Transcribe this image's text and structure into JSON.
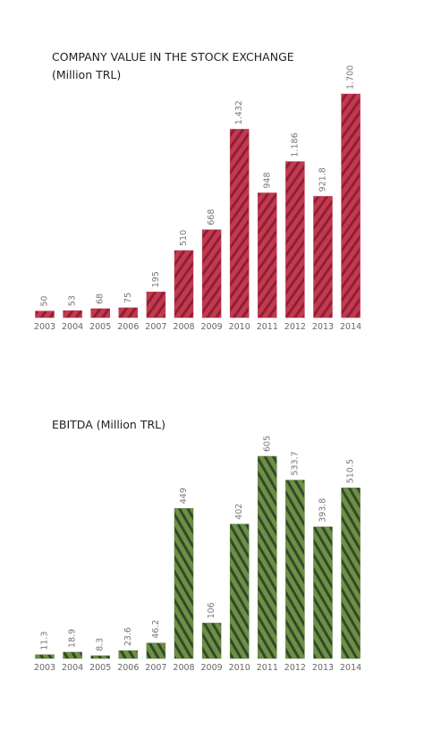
{
  "chart_data": [
    {
      "type": "bar",
      "title": "COMPANY VALUE IN THE STOCK EXCHANGE",
      "subtitle": "(Million TRL)",
      "categories": [
        "2003",
        "2004",
        "2005",
        "2006",
        "2007",
        "2008",
        "2009",
        "2010",
        "2011",
        "2012",
        "2013",
        "2014"
      ],
      "values": [
        50,
        53,
        68,
        75,
        195,
        510,
        668,
        1432,
        948,
        1186,
        921.8,
        1700
      ],
      "value_labels": [
        "50",
        "53",
        "68",
        "75",
        "195",
        "510",
        "668",
        "1.432",
        "948",
        "1.186",
        "921.8",
        "1.700"
      ],
      "color": "#c23a50"
    },
    {
      "type": "bar",
      "title": "EBITDA (Million TRL)",
      "categories": [
        "2003",
        "2004",
        "2005",
        "2006",
        "2007",
        "2008",
        "2009",
        "2010",
        "2011",
        "2012",
        "2013",
        "2014"
      ],
      "values": [
        11.3,
        18.9,
        8.3,
        23.6,
        46.2,
        449,
        106,
        402,
        605,
        533.7,
        393.8,
        510.5
      ],
      "color": "#5f7d3c"
    }
  ]
}
